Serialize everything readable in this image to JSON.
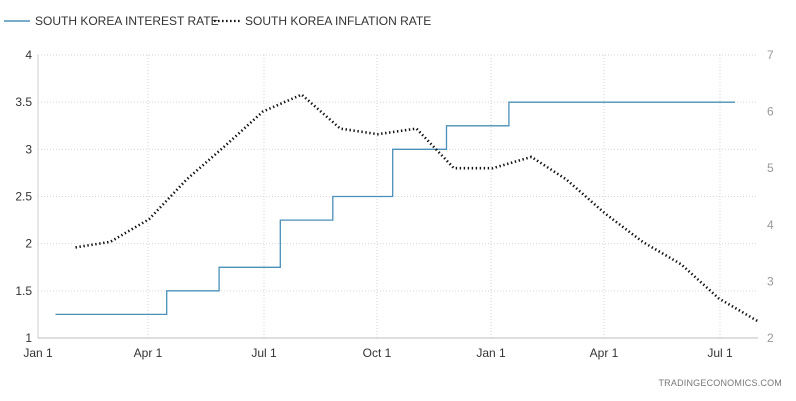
{
  "chart_data": {
    "type": "line",
    "legend": {
      "placement": "top-left",
      "items": [
        {
          "label": "SOUTH KOREA INTEREST RATE",
          "style": "solid",
          "color": "#4a90b8"
        },
        {
          "label": "SOUTH KOREA INFLATION RATE",
          "style": "dotted",
          "color": "#111111"
        }
      ]
    },
    "x_ticks": [
      "Jan 1",
      "Apr 1",
      "Jul 1",
      "Oct 1",
      "Jan 1",
      "Apr 1",
      "Jul 1"
    ],
    "y_left": {
      "ticks": [
        "4",
        "3.5",
        "3",
        "2.5",
        "2",
        "1.5",
        "1"
      ],
      "range": [
        1,
        4
      ]
    },
    "y_right": {
      "ticks": [
        "7",
        "6",
        "5",
        "4",
        "3",
        "2"
      ],
      "range": [
        2,
        7
      ]
    },
    "grid": true,
    "source": "TRADINGECONOMICS.COM",
    "series": [
      {
        "name": "SOUTH KOREA INTEREST RATE",
        "axis": "left",
        "interpolation": "step",
        "color": "#4a90b8",
        "points": [
          {
            "x": "Jan 15",
            "y": 1.25
          },
          {
            "x": "Apr 14",
            "y": 1.5
          },
          {
            "x": "May 26",
            "y": 1.75
          },
          {
            "x": "Jul 14",
            "y": 2.25
          },
          {
            "x": "Aug 25",
            "y": 2.5
          },
          {
            "x": "Oct 12",
            "y": 3.0
          },
          {
            "x": "Nov 24",
            "y": 3.25
          },
          {
            "x": "Jan 13",
            "y": 3.5
          },
          {
            "x": "Jul 13",
            "y": 3.5
          }
        ]
      },
      {
        "name": "SOUTH KOREA INFLATION RATE",
        "axis": "right",
        "interpolation": "linear",
        "color": "#111111",
        "points": [
          {
            "x": "Jan 31",
            "y": 3.6
          },
          {
            "x": "Feb 28",
            "y": 3.7
          },
          {
            "x": "Mar 31",
            "y": 4.1
          },
          {
            "x": "Apr 30",
            "y": 4.8
          },
          {
            "x": "May 31",
            "y": 5.4
          },
          {
            "x": "Jun 30",
            "y": 6.0
          },
          {
            "x": "Jul 31",
            "y": 6.3
          },
          {
            "x": "Aug 31",
            "y": 5.7
          },
          {
            "x": "Sep 30",
            "y": 5.6
          },
          {
            "x": "Oct 31",
            "y": 5.7
          },
          {
            "x": "Nov 30",
            "y": 5.0
          },
          {
            "x": "Dec 31",
            "y": 5.0
          },
          {
            "x": "Jan 31",
            "y": 5.2
          },
          {
            "x": "Feb 28",
            "y": 4.8
          },
          {
            "x": "Mar 31",
            "y": 4.2
          },
          {
            "x": "Apr 30",
            "y": 3.7
          },
          {
            "x": "May 31",
            "y": 3.3
          },
          {
            "x": "Jun 30",
            "y": 2.7
          },
          {
            "x": "Jul 31",
            "y": 2.3
          }
        ]
      }
    ]
  }
}
